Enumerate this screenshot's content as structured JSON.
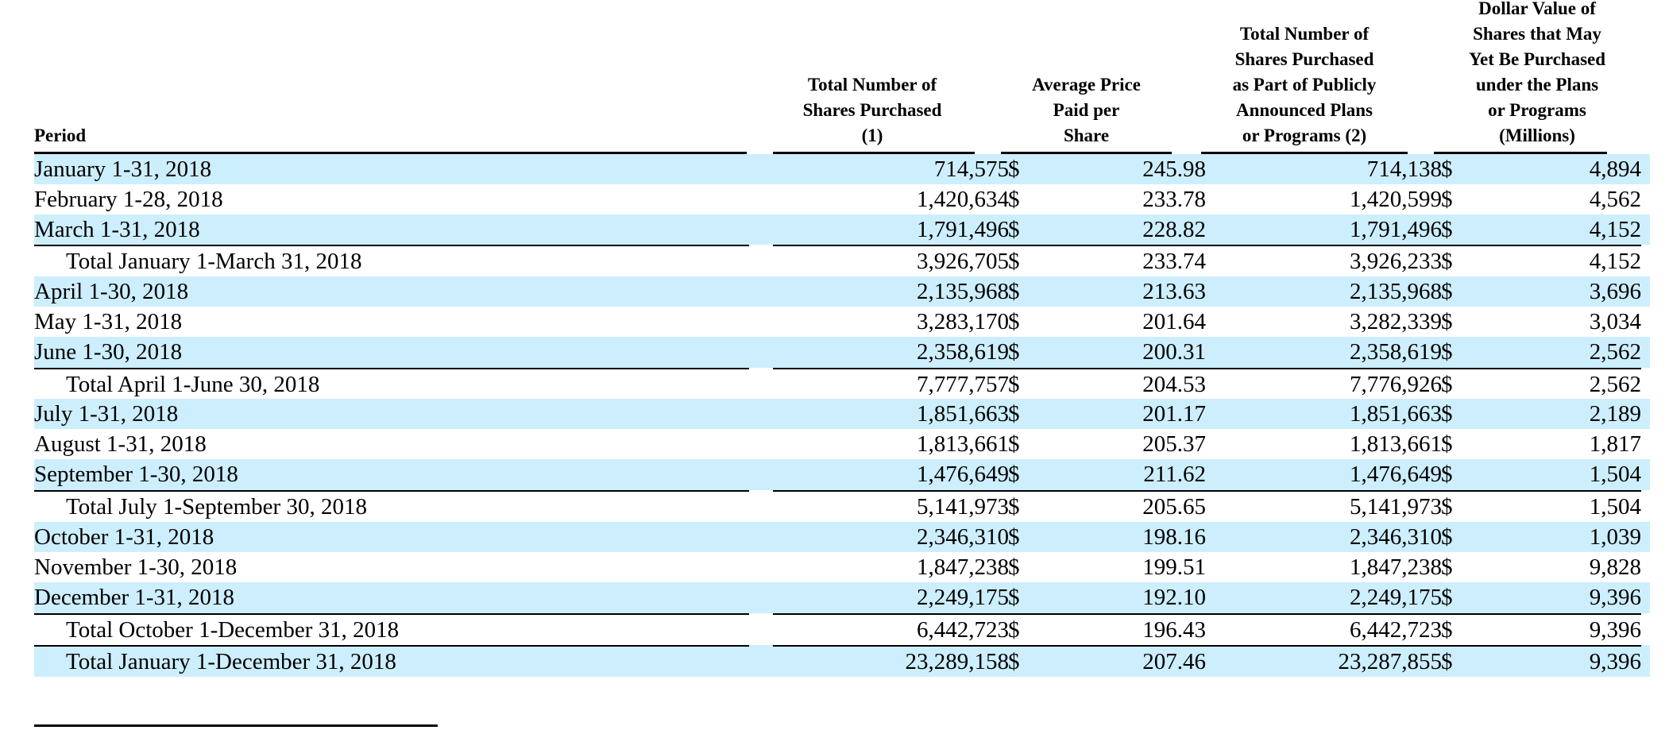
{
  "headers": {
    "period": "Period",
    "total_shares": "Total Number of\nShares Purchased\n(1)",
    "avg_price": "Average Price\nPaid per\nShare",
    "plan_shares": "Total Number of\nShares Purchased\nas Part of Publicly\nAnnounced Plans\nor Programs (2)",
    "dollar_value": "Dollar Value of\nShares that May\nYet Be Purchased\nunder the Plans\nor Programs\n(Millions)"
  },
  "currency_symbol": "$",
  "rows": [
    {
      "period": "January 1-31, 2018",
      "total_shares": "714,575",
      "avg_price": "245.98",
      "plan_shares": "714,138",
      "dollar_value": "4,894",
      "total": false
    },
    {
      "period": "February 1-28, 2018",
      "total_shares": "1,420,634",
      "avg_price": "233.78",
      "plan_shares": "1,420,599",
      "dollar_value": "4,562",
      "total": false
    },
    {
      "period": "March 1-31, 2018",
      "total_shares": "1,791,496",
      "avg_price": "228.82",
      "plan_shares": "1,791,496",
      "dollar_value": "4,152",
      "total": false
    },
    {
      "period": "Total January 1-March 31, 2018",
      "total_shares": "3,926,705",
      "avg_price": "233.74",
      "plan_shares": "3,926,233",
      "dollar_value": "4,152",
      "total": true
    },
    {
      "period": "April 1-30, 2018",
      "total_shares": "2,135,968",
      "avg_price": "213.63",
      "plan_shares": "2,135,968",
      "dollar_value": "3,696",
      "total": false
    },
    {
      "period": "May 1-31, 2018",
      "total_shares": "3,283,170",
      "avg_price": "201.64",
      "plan_shares": "3,282,339",
      "dollar_value": "3,034",
      "total": false
    },
    {
      "period": "June 1-30, 2018",
      "total_shares": "2,358,619",
      "avg_price": "200.31",
      "plan_shares": "2,358,619",
      "dollar_value": "2,562",
      "total": false
    },
    {
      "period": "Total April 1-June 30, 2018",
      "total_shares": "7,777,757",
      "avg_price": "204.53",
      "plan_shares": "7,776,926",
      "dollar_value": "2,562",
      "total": true
    },
    {
      "period": "July 1-31, 2018",
      "total_shares": "1,851,663",
      "avg_price": "201.17",
      "plan_shares": "1,851,663",
      "dollar_value": "2,189",
      "total": false
    },
    {
      "period": "August 1-31, 2018",
      "total_shares": "1,813,661",
      "avg_price": "205.37",
      "plan_shares": "1,813,661",
      "dollar_value": "1,817",
      "total": false
    },
    {
      "period": "September 1-30, 2018",
      "total_shares": "1,476,649",
      "avg_price": "211.62",
      "plan_shares": "1,476,649",
      "dollar_value": "1,504",
      "total": false
    },
    {
      "period": "Total July 1-September 30, 2018",
      "total_shares": "5,141,973",
      "avg_price": "205.65",
      "plan_shares": "5,141,973",
      "dollar_value": "1,504",
      "total": true
    },
    {
      "period": "October 1-31, 2018",
      "total_shares": "2,346,310",
      "avg_price": "198.16",
      "plan_shares": "2,346,310",
      "dollar_value": "1,039",
      "total": false
    },
    {
      "period": "November 1-30, 2018",
      "total_shares": "1,847,238",
      "avg_price": "199.51",
      "plan_shares": "1,847,238",
      "dollar_value": "9,828",
      "total": false
    },
    {
      "period": "December 1-31, 2018",
      "total_shares": "2,249,175",
      "avg_price": "192.10",
      "plan_shares": "2,249,175",
      "dollar_value": "9,396",
      "total": false
    },
    {
      "period": "Total October 1-December 31, 2018",
      "total_shares": "6,442,723",
      "avg_price": "196.43",
      "plan_shares": "6,442,723",
      "dollar_value": "9,396",
      "total": true
    },
    {
      "period": "Total January 1-December 31, 2018",
      "total_shares": "23,289,158",
      "avg_price": "207.46",
      "plan_shares": "23,287,855",
      "dollar_value": "9,396",
      "total": true
    }
  ]
}
